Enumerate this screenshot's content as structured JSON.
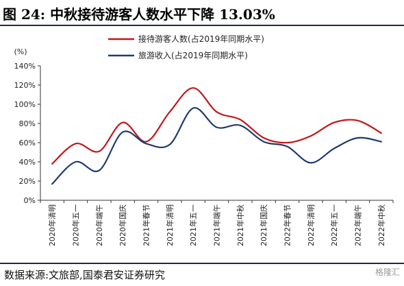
{
  "header": {
    "title": "图 24:  中秋接待游客人数水平下降 13.03%"
  },
  "footer": {
    "source": "数据来源:文旅部,国泰君安证券研究",
    "watermark": "格隆汇"
  },
  "colors": {
    "tourists": "#c0161b",
    "revenue": "#1f3a6e",
    "frame": "#1f2a44"
  },
  "chart_data": {
    "type": "line",
    "ylabel": "(%)",
    "ylim": [
      0,
      140
    ],
    "yticks": [
      "0%",
      "20%",
      "40%",
      "60%",
      "80%",
      "100%",
      "120%",
      "140%"
    ],
    "grid": false,
    "legend_position": "top-right",
    "categories": [
      "2020年清明",
      "2020年五一",
      "2020年端午",
      "2020年国庆",
      "2021年春节",
      "2021年清明",
      "2021年五一",
      "2021年端午",
      "2021年中秋",
      "2021年国庆",
      "2022年春节",
      "2022年清明",
      "2022年五一",
      "2022年端午",
      "2022年中秋"
    ],
    "series": [
      {
        "name": "接待游客人数(占2019年同期水平)",
        "values": [
          38,
          59,
          51,
          81,
          61,
          92,
          117,
          92,
          84,
          65,
          60,
          67,
          81,
          83,
          70
        ]
      },
      {
        "name": "旅游收入(占2019年同期水平)",
        "values": [
          17,
          40,
          31,
          71,
          59,
          58,
          96,
          76,
          78,
          61,
          56,
          39,
          54,
          65,
          61
        ]
      }
    ]
  }
}
